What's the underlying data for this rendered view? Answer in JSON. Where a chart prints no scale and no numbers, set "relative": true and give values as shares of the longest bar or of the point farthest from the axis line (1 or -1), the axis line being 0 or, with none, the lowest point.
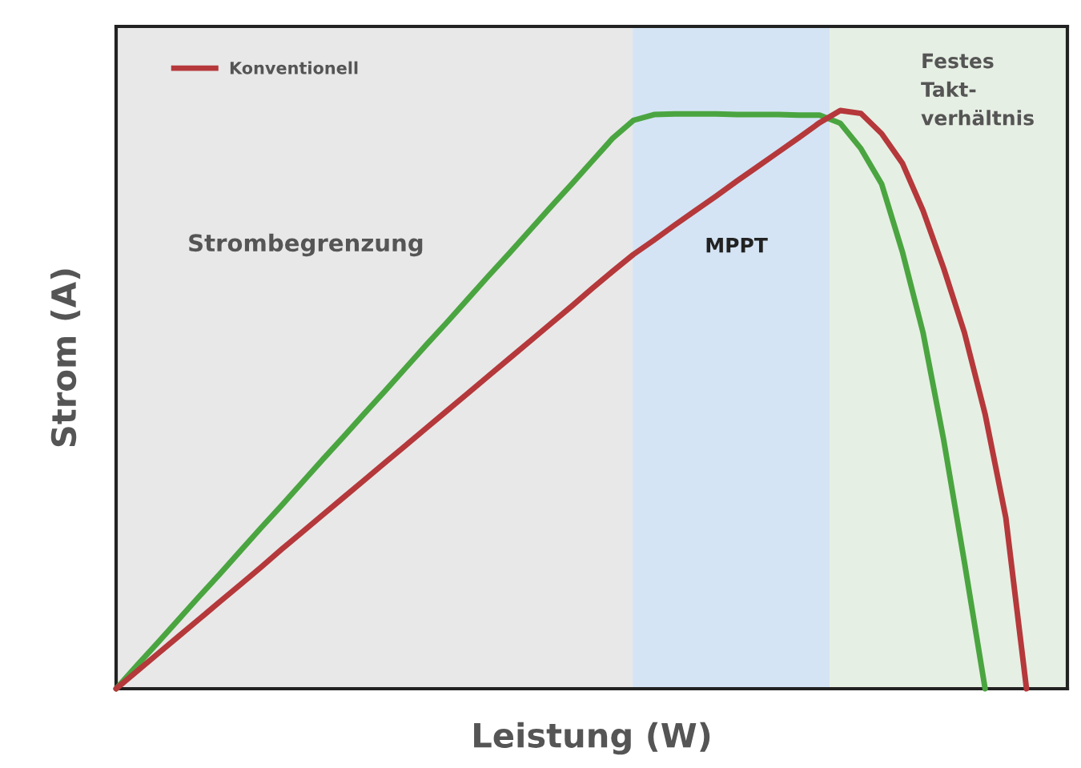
{
  "chart_data": {
    "type": "line",
    "xlabel": "Leistung (W)",
    "ylabel": "Strom (A)",
    "relative": true,
    "tick_labels": false,
    "legend": "top left",
    "marker": "none",
    "line_style": "solid",
    "annotations": [
      "Strombegrenzung",
      "MPPT",
      "Festes\nTakt-\nverhältnis"
    ],
    "categories": [
      null,
      null,
      null,
      null,
      null,
      null,
      null,
      null,
      null,
      null,
      null,
      null,
      null,
      null,
      null,
      null,
      null,
      null,
      null,
      null,
      null,
      null,
      null,
      null,
      null,
      null,
      null,
      null,
      null,
      null,
      null,
      null,
      null,
      null,
      null,
      null,
      null,
      null,
      null,
      null,
      null,
      null,
      null,
      null,
      null
    ],
    "series": [
      {
        "color": "#4aa540",
        "values": [
          0,
          0.04,
          0.079,
          0.119,
          0.159,
          0.198,
          0.238,
          0.278,
          0.317,
          0.357,
          0.397,
          0.436,
          0.476,
          0.515,
          0.555,
          0.595,
          0.634,
          0.674,
          0.714,
          0.753,
          0.793,
          0.833,
          0.872,
          0.912,
          0.952,
          0.983,
          0.993,
          0.994,
          0.994,
          0.994,
          0.993,
          0.993,
          0.993,
          0.992,
          0.992,
          0.978,
          0.934,
          0.873,
          0.756,
          0.616,
          0.43,
          0.219,
          0,
          null,
          null
        ]
      },
      {
        "name": "Konventionell",
        "color": "#b5383b",
        "values": [
          0,
          0.03,
          0.06,
          0.09,
          0.12,
          0.15,
          0.18,
          0.21,
          0.241,
          0.271,
          0.301,
          0.331,
          0.361,
          0.391,
          0.421,
          0.451,
          0.481,
          0.511,
          0.541,
          0.571,
          0.601,
          0.631,
          0.661,
          0.692,
          0.722,
          0.751,
          0.776,
          0.802,
          0.827,
          0.852,
          0.878,
          0.903,
          0.928,
          0.953,
          0.979,
          1.0,
          0.995,
          0.96,
          0.909,
          0.827,
          0.727,
          0.616,
          0.475,
          0.296,
          0
        ]
      }
    ]
  }
}
